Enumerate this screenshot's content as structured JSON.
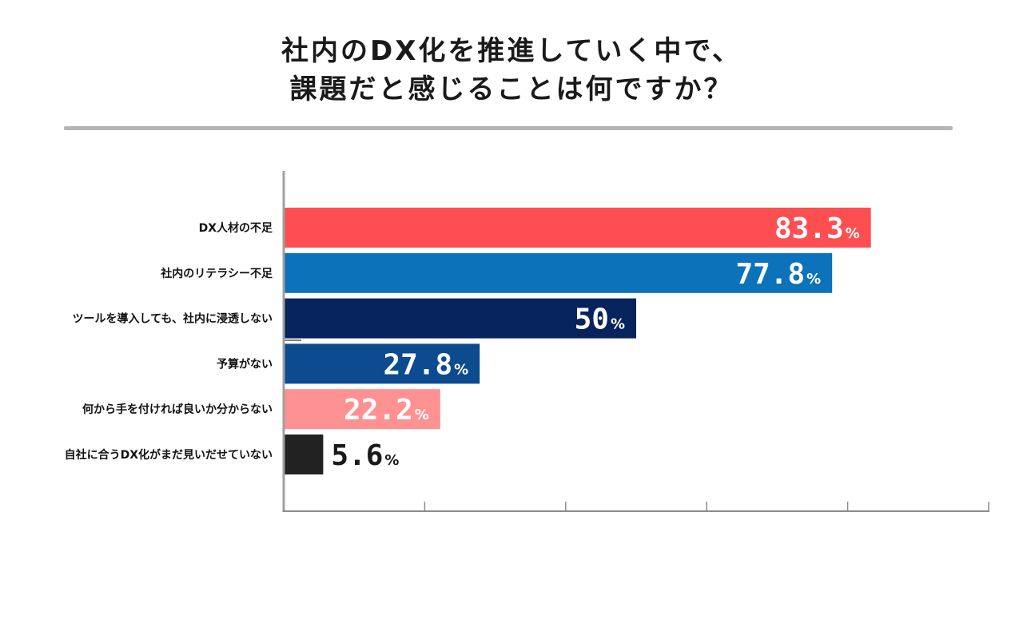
{
  "title_line1": "社内のDX化を推進していく中で、",
  "title_line2": "課題だと感じることは何ですか？",
  "chart_data": {
    "type": "bar",
    "orientation": "horizontal",
    "title": "社内のDX化を推進していく中で、課題だと感じることは何ですか？",
    "categories": [
      "DX人材の不足",
      "社内のリテラシー不足",
      "ツールを導入しても、社内に浸透しない",
      "予算がない",
      "何から手を付ければ良いか分からない",
      "自社に合うDX化がまだ見いだせていない"
    ],
    "values": [
      83.3,
      77.8,
      50,
      27.8,
      22.2,
      5.6
    ],
    "value_labels": [
      "83.3",
      "77.8",
      "50",
      "27.8",
      "22.2",
      "5.6"
    ],
    "value_suffix": "%",
    "colors": [
      "#fd4f52",
      "#0c72b9",
      "#06235d",
      "#0c4b8f",
      "#fe9191",
      "#222222"
    ],
    "label_colors": [
      "#ffffff",
      "#ffffff",
      "#ffffff",
      "#ffffff",
      "#ffffff",
      "#1a1a1a"
    ],
    "xlim": [
      0,
      100
    ],
    "grid": false,
    "xticks_count": 5,
    "tick_labels_shown": false,
    "xlabel": "",
    "ylabel": ""
  }
}
